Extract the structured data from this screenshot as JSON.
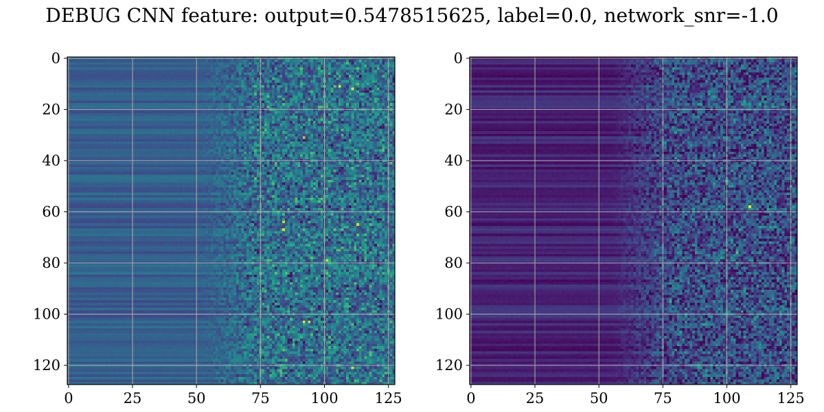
{
  "figure": {
    "title": "DEBUG CNN feature: output=0.5478515625, label=0.0, network_snr=-1.0"
  },
  "chart_data": [
    {
      "type": "heatmap",
      "name": "feature-left",
      "rows": 128,
      "cols": 128,
      "xlim": [
        -0.5,
        127.5
      ],
      "ylim": [
        127.5,
        -0.5
      ],
      "xticks": [
        0,
        25,
        50,
        75,
        100,
        125
      ],
      "yticks": [
        0,
        20,
        40,
        60,
        80,
        100,
        120
      ],
      "grid": true,
      "colormap": "viridis",
      "value_range": [
        0,
        1
      ],
      "profile": {
        "smooth_region_cols": [
          0,
          50
        ],
        "smooth_level": 0.3,
        "transition_cols": [
          50,
          75
        ],
        "noisy_region_cols": [
          75,
          127
        ],
        "noisy_level": 0.35,
        "hot_spots": [
          {
            "row": 11,
            "col": 106,
            "value": 0.98
          },
          {
            "row": 12,
            "col": 111,
            "value": 0.95
          },
          {
            "row": 31,
            "col": 92,
            "value": 0.88
          },
          {
            "row": 64,
            "col": 84,
            "value": 0.9
          },
          {
            "row": 67,
            "col": 84,
            "value": 0.96
          },
          {
            "row": 65,
            "col": 113,
            "value": 0.92
          },
          {
            "row": 79,
            "col": 101,
            "value": 0.94
          },
          {
            "row": 103,
            "col": 92,
            "value": 0.96
          },
          {
            "row": 103,
            "col": 94,
            "value": 0.95
          },
          {
            "row": 121,
            "col": 111,
            "value": 0.93
          }
        ]
      }
    },
    {
      "type": "heatmap",
      "name": "feature-right",
      "rows": 128,
      "cols": 128,
      "xlim": [
        -0.5,
        127.5
      ],
      "ylim": [
        127.5,
        -0.5
      ],
      "xticks": [
        0,
        25,
        50,
        75,
        100,
        125
      ],
      "yticks": [
        0,
        20,
        40,
        60,
        80,
        100,
        120
      ],
      "grid": true,
      "colormap": "viridis",
      "value_range": [
        0,
        1
      ],
      "profile": {
        "smooth_region_cols": [
          0,
          55
        ],
        "smooth_level": 0.1,
        "transition_cols": [
          55,
          80
        ],
        "noisy_region_cols": [
          80,
          127
        ],
        "noisy_level": 0.22,
        "hot_spots": [
          {
            "row": 58,
            "col": 109,
            "value": 0.97
          },
          {
            "row": 48,
            "col": 100,
            "value": 0.7
          },
          {
            "row": 76,
            "col": 104,
            "value": 0.72
          },
          {
            "row": 95,
            "col": 78,
            "value": 0.65
          },
          {
            "row": 28,
            "col": 112,
            "value": 0.6
          }
        ]
      }
    }
  ]
}
